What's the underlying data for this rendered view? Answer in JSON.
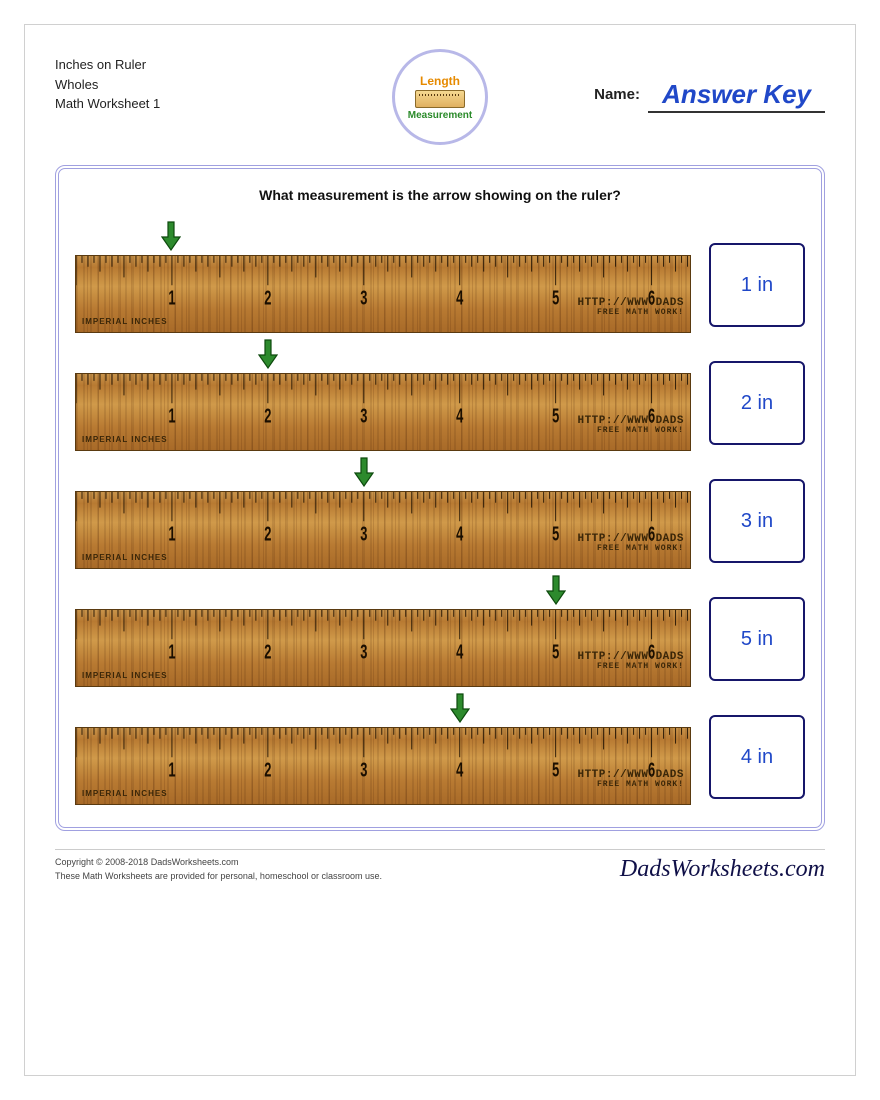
{
  "header": {
    "title_line1": "Inches on Ruler",
    "title_line2": "Wholes",
    "title_line3": "Math Worksheet 1",
    "badge_top": "Length",
    "badge_bottom": "Measurement",
    "name_label": "Name:",
    "answer_key": "Answer Key"
  },
  "question": "What measurement is the arrow showing on the ruler?",
  "ruler": {
    "max_inches": 6.4,
    "inch_labels": [
      "1",
      "2",
      "3",
      "4",
      "5",
      "6"
    ],
    "brand_line1": "HTTP://WWW.DADS",
    "brand_line2": "FREE MATH WORK!",
    "imperial_label": "IMPERIAL INCHES",
    "wood_color_top": "#c8934a",
    "wood_color_bottom": "#a86a28",
    "tick_color": "#1a0e00",
    "number_color": "#1a0e00"
  },
  "arrow": {
    "fill": "#2d8a2d",
    "stroke": "#0d4a0d"
  },
  "answers": {
    "box_border": "#16166a",
    "text_color": "#2048c8"
  },
  "problems": [
    {
      "arrow_at": 1,
      "answer": "1 in"
    },
    {
      "arrow_at": 2,
      "answer": "2 in"
    },
    {
      "arrow_at": 3,
      "answer": "3 in"
    },
    {
      "arrow_at": 5,
      "answer": "5 in"
    },
    {
      "arrow_at": 4,
      "answer": "4 in"
    }
  ],
  "footer": {
    "copyright": "Copyright © 2008-2018 DadsWorksheets.com",
    "note": "These Math Worksheets are provided for personal, homeschool or classroom use.",
    "logo": "DadsWorksheets.com"
  }
}
